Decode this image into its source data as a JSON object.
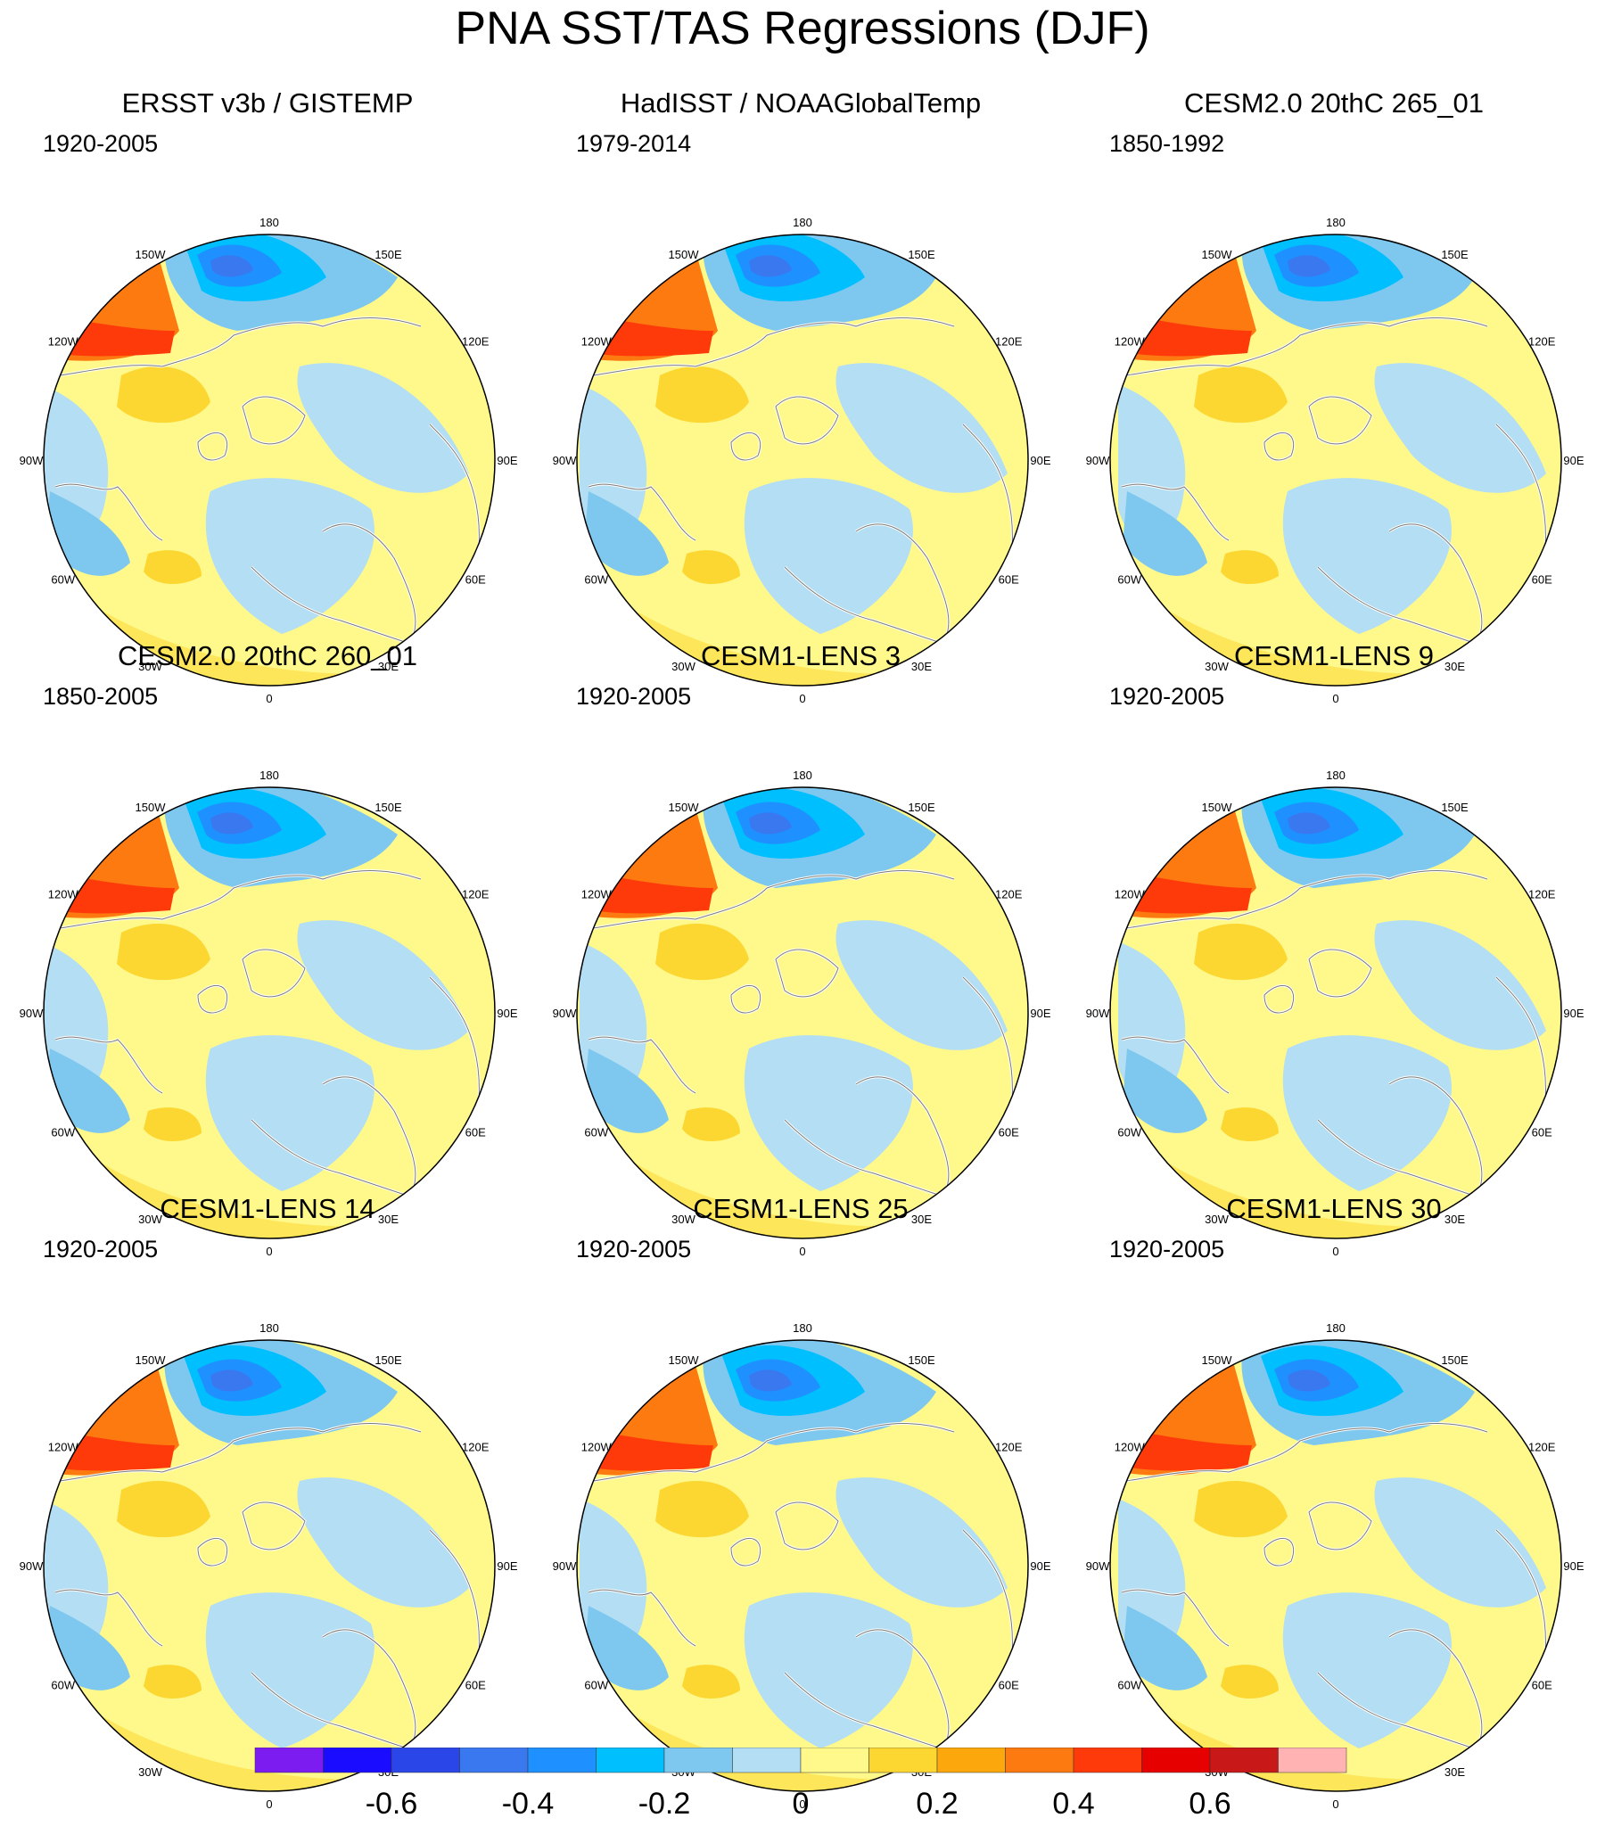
{
  "title": "PNA SST/TAS Regressions (DJF)",
  "longitude_labels": {
    "top": "180",
    "nw_top": "150W",
    "ne_top": "150E",
    "nw_mid": "120W",
    "ne_mid": "120E",
    "w": "90W",
    "e": "90E",
    "sw_mid": "60W",
    "se_mid": "60E",
    "sw_bot": "30W",
    "se_bot": "30E",
    "bottom": "0"
  },
  "panels": [
    {
      "title": "ERSST v3b / GISTEMP",
      "period": "1920-2005"
    },
    {
      "title": "HadISST / NOAAGlobalTemp",
      "period": "1979-2014"
    },
    {
      "title": "CESM2.0 20thC 265_01",
      "period": "1850-1992"
    },
    {
      "title": "CESM2.0 20thC 260_01",
      "period": "1850-2005"
    },
    {
      "title": "CESM1-LENS 3",
      "period": "1920-2005"
    },
    {
      "title": "CESM1-LENS 9",
      "period": "1920-2005"
    },
    {
      "title": "CESM1-LENS 14",
      "period": "1920-2005"
    },
    {
      "title": "CESM1-LENS 25",
      "period": "1920-2005"
    },
    {
      "title": "CESM1-LENS 30",
      "period": "1920-2005"
    }
  ],
  "colorbar": {
    "colors": [
      "#7d1cf0",
      "#1a0dff",
      "#2a46e8",
      "#3a78f0",
      "#1e90ff",
      "#00bfff",
      "#7ec8f0",
      "#b3def3",
      "#fff98c",
      "#fcd731",
      "#fca80d",
      "#fc7a10",
      "#ff3a0a",
      "#e60000",
      "#c81818",
      "#ffb3b3"
    ],
    "tick_labels": [
      "-0.6",
      "-0.4",
      "-0.2",
      "0",
      "0.2",
      "0.4",
      "0.6"
    ]
  }
}
